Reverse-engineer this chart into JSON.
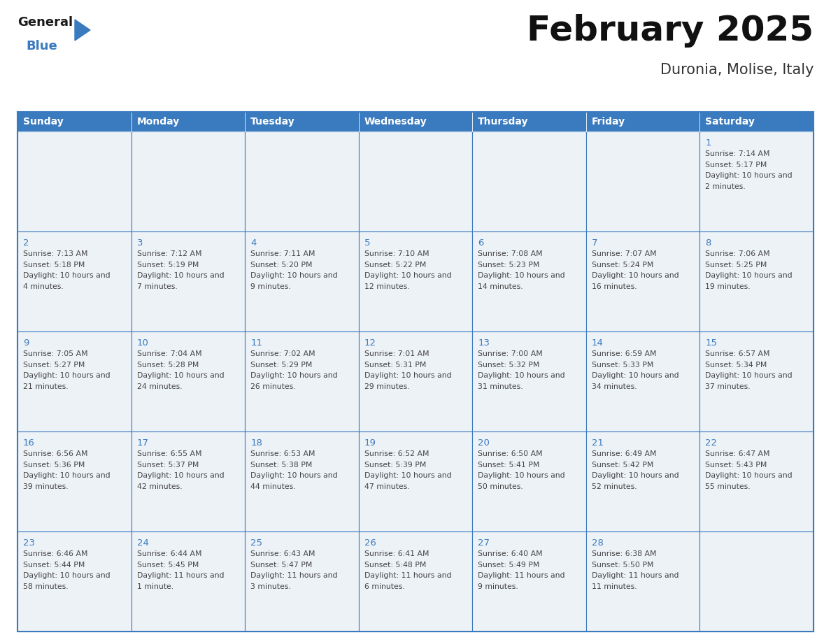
{
  "title": "February 2025",
  "subtitle": "Duronia, Molise, Italy",
  "days_of_week": [
    "Sunday",
    "Monday",
    "Tuesday",
    "Wednesday",
    "Thursday",
    "Friday",
    "Saturday"
  ],
  "header_bg": "#3a7abf",
  "header_fg": "#ffffff",
  "cell_bg": "#edf2f7",
  "border_color": "#3a7abf",
  "day_num_color": "#3a7abf",
  "text_color": "#444444",
  "logo_general_color": "#1a1a1a",
  "logo_blue_color": "#3a7abf",
  "calendar_data": {
    "1": {
      "sunrise": "7:14 AM",
      "sunset": "5:17 PM",
      "daylight": "10 hours and 2 minutes."
    },
    "2": {
      "sunrise": "7:13 AM",
      "sunset": "5:18 PM",
      "daylight": "10 hours and 4 minutes."
    },
    "3": {
      "sunrise": "7:12 AM",
      "sunset": "5:19 PM",
      "daylight": "10 hours and 7 minutes."
    },
    "4": {
      "sunrise": "7:11 AM",
      "sunset": "5:20 PM",
      "daylight": "10 hours and 9 minutes."
    },
    "5": {
      "sunrise": "7:10 AM",
      "sunset": "5:22 PM",
      "daylight": "10 hours and 12 minutes."
    },
    "6": {
      "sunrise": "7:08 AM",
      "sunset": "5:23 PM",
      "daylight": "10 hours and 14 minutes."
    },
    "7": {
      "sunrise": "7:07 AM",
      "sunset": "5:24 PM",
      "daylight": "10 hours and 16 minutes."
    },
    "8": {
      "sunrise": "7:06 AM",
      "sunset": "5:25 PM",
      "daylight": "10 hours and 19 minutes."
    },
    "9": {
      "sunrise": "7:05 AM",
      "sunset": "5:27 PM",
      "daylight": "10 hours and 21 minutes."
    },
    "10": {
      "sunrise": "7:04 AM",
      "sunset": "5:28 PM",
      "daylight": "10 hours and 24 minutes."
    },
    "11": {
      "sunrise": "7:02 AM",
      "sunset": "5:29 PM",
      "daylight": "10 hours and 26 minutes."
    },
    "12": {
      "sunrise": "7:01 AM",
      "sunset": "5:31 PM",
      "daylight": "10 hours and 29 minutes."
    },
    "13": {
      "sunrise": "7:00 AM",
      "sunset": "5:32 PM",
      "daylight": "10 hours and 31 minutes."
    },
    "14": {
      "sunrise": "6:59 AM",
      "sunset": "5:33 PM",
      "daylight": "10 hours and 34 minutes."
    },
    "15": {
      "sunrise": "6:57 AM",
      "sunset": "5:34 PM",
      "daylight": "10 hours and 37 minutes."
    },
    "16": {
      "sunrise": "6:56 AM",
      "sunset": "5:36 PM",
      "daylight": "10 hours and 39 minutes."
    },
    "17": {
      "sunrise": "6:55 AM",
      "sunset": "5:37 PM",
      "daylight": "10 hours and 42 minutes."
    },
    "18": {
      "sunrise": "6:53 AM",
      "sunset": "5:38 PM",
      "daylight": "10 hours and 44 minutes."
    },
    "19": {
      "sunrise": "6:52 AM",
      "sunset": "5:39 PM",
      "daylight": "10 hours and 47 minutes."
    },
    "20": {
      "sunrise": "6:50 AM",
      "sunset": "5:41 PM",
      "daylight": "10 hours and 50 minutes."
    },
    "21": {
      "sunrise": "6:49 AM",
      "sunset": "5:42 PM",
      "daylight": "10 hours and 52 minutes."
    },
    "22": {
      "sunrise": "6:47 AM",
      "sunset": "5:43 PM",
      "daylight": "10 hours and 55 minutes."
    },
    "23": {
      "sunrise": "6:46 AM",
      "sunset": "5:44 PM",
      "daylight": "10 hours and 58 minutes."
    },
    "24": {
      "sunrise": "6:44 AM",
      "sunset": "5:45 PM",
      "daylight": "11 hours and 1 minute."
    },
    "25": {
      "sunrise": "6:43 AM",
      "sunset": "5:47 PM",
      "daylight": "11 hours and 3 minutes."
    },
    "26": {
      "sunrise": "6:41 AM",
      "sunset": "5:48 PM",
      "daylight": "11 hours and 6 minutes."
    },
    "27": {
      "sunrise": "6:40 AM",
      "sunset": "5:49 PM",
      "daylight": "11 hours and 9 minutes."
    },
    "28": {
      "sunrise": "6:38 AM",
      "sunset": "5:50 PM",
      "daylight": "11 hours and 11 minutes."
    }
  },
  "week_layout": [
    [
      null,
      null,
      null,
      null,
      null,
      null,
      1
    ],
    [
      2,
      3,
      4,
      5,
      6,
      7,
      8
    ],
    [
      9,
      10,
      11,
      12,
      13,
      14,
      15
    ],
    [
      16,
      17,
      18,
      19,
      20,
      21,
      22
    ],
    [
      23,
      24,
      25,
      26,
      27,
      28,
      null
    ]
  ]
}
